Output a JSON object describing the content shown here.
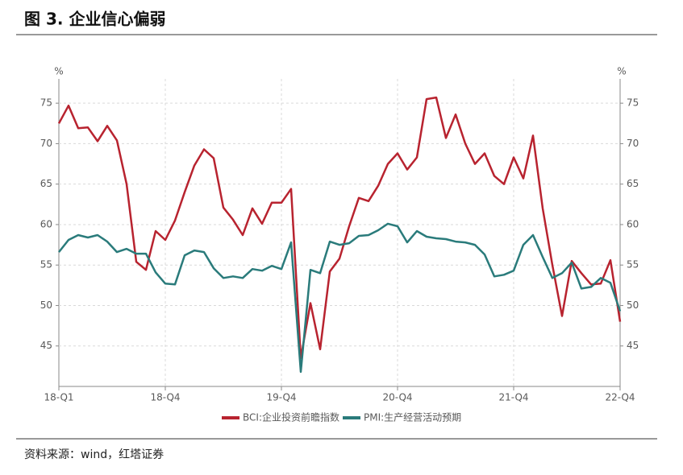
{
  "chart_data": {
    "type": "line",
    "title": "图 3. 企业信心偏弱",
    "source": "资料来源：wind，红塔证券",
    "ylabel": "%",
    "y2label": "%",
    "categories": [
      "18-Q1",
      null,
      null,
      null,
      null,
      null,
      null,
      null,
      null,
      null,
      null,
      "18-Q4",
      null,
      null,
      null,
      null,
      null,
      null,
      null,
      null,
      null,
      null,
      null,
      "19-Q4",
      null,
      null,
      null,
      null,
      null,
      null,
      null,
      null,
      null,
      null,
      null,
      "20-Q4",
      null,
      null,
      null,
      null,
      null,
      null,
      null,
      null,
      null,
      null,
      null,
      "21-Q4",
      null,
      null,
      null,
      null,
      null,
      null,
      null,
      null,
      null,
      null,
      "22-Q4"
    ],
    "series": [
      {
        "name": "BCI:企业投资前瞻指数",
        "color": "#b8232f",
        "values": [
          72.5,
          74.7,
          71.9,
          72.0,
          70.3,
          72.2,
          70.4,
          65.0,
          55.4,
          54.4,
          59.2,
          58.1,
          60.5,
          64.0,
          67.3,
          69.3,
          68.2,
          62.1,
          60.6,
          58.7,
          62.0,
          60.1,
          62.7,
          62.7,
          64.4,
          43.5,
          50.3,
          44.6,
          54.2,
          55.8,
          59.8,
          63.3,
          62.9,
          64.8,
          67.5,
          68.8,
          66.8,
          68.3,
          75.5,
          75.7,
          70.7,
          73.6,
          70.0,
          67.5,
          68.8,
          66.0,
          65.0,
          68.3,
          65.7,
          71.0,
          62.0,
          55.0,
          48.7,
          55.5,
          54.0,
          52.6,
          52.7,
          55.6,
          48.0
        ]
      },
      {
        "name": "PMI:生产经营活动预期",
        "color": "#2a7b7b",
        "values": [
          56.6,
          58.1,
          58.7,
          58.4,
          58.7,
          57.9,
          56.6,
          57.0,
          56.4,
          56.4,
          54.1,
          52.7,
          52.6,
          56.2,
          56.8,
          56.6,
          54.6,
          53.4,
          53.6,
          53.4,
          54.5,
          54.3,
          54.9,
          54.5,
          57.8,
          41.8,
          54.4,
          54.0,
          57.9,
          57.5,
          57.7,
          58.6,
          58.7,
          59.3,
          60.1,
          59.8,
          57.8,
          59.2,
          58.5,
          58.3,
          58.2,
          57.9,
          57.8,
          57.5,
          56.3,
          53.6,
          53.8,
          54.3,
          57.5,
          58.7,
          56.0,
          53.4,
          54.0,
          55.3,
          52.1,
          52.3,
          53.4,
          52.8,
          49.3
        ]
      }
    ],
    "ylim": [
      40,
      78
    ],
    "yticks": [
      45,
      50,
      55,
      60,
      65,
      70,
      75
    ],
    "y2lim": [
      40,
      78
    ],
    "y2ticks": [
      45,
      50,
      55,
      60,
      65,
      70,
      75
    ],
    "grid": true
  }
}
